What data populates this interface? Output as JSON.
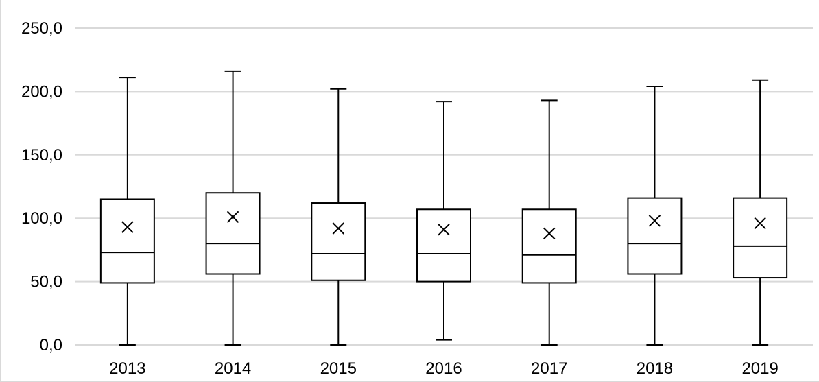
{
  "chart_data": {
    "type": "boxplot",
    "categories": [
      "2013",
      "2014",
      "2015",
      "2016",
      "2017",
      "2018",
      "2019"
    ],
    "boxes": [
      {
        "min": 0,
        "q1": 49,
        "median": 73,
        "q3": 115,
        "max": 211,
        "mean": 93
      },
      {
        "min": 0,
        "q1": 56,
        "median": 80,
        "q3": 120,
        "max": 216,
        "mean": 101
      },
      {
        "min": 0,
        "q1": 51,
        "median": 72,
        "q3": 112,
        "max": 202,
        "mean": 92
      },
      {
        "min": 4,
        "q1": 50,
        "median": 72,
        "q3": 107,
        "max": 192,
        "mean": 91
      },
      {
        "min": 0,
        "q1": 49,
        "median": 71,
        "q3": 107,
        "max": 193,
        "mean": 88
      },
      {
        "min": 0,
        "q1": 56,
        "median": 80,
        "q3": 116,
        "max": 204,
        "mean": 98
      },
      {
        "min": 0,
        "q1": 53,
        "median": 78,
        "q3": 116,
        "max": 209,
        "mean": 96
      }
    ],
    "y_ticks": [
      "0,0",
      "50,0",
      "100,0",
      "150,0",
      "200,0",
      "250,0"
    ],
    "y_tick_values": [
      0,
      50,
      100,
      150,
      200,
      250
    ],
    "ylim": [
      0,
      250
    ],
    "grid": true,
    "mean_marker": "x",
    "colors": {
      "box_stroke": "#000000",
      "grid": "#d9d9d9"
    }
  }
}
